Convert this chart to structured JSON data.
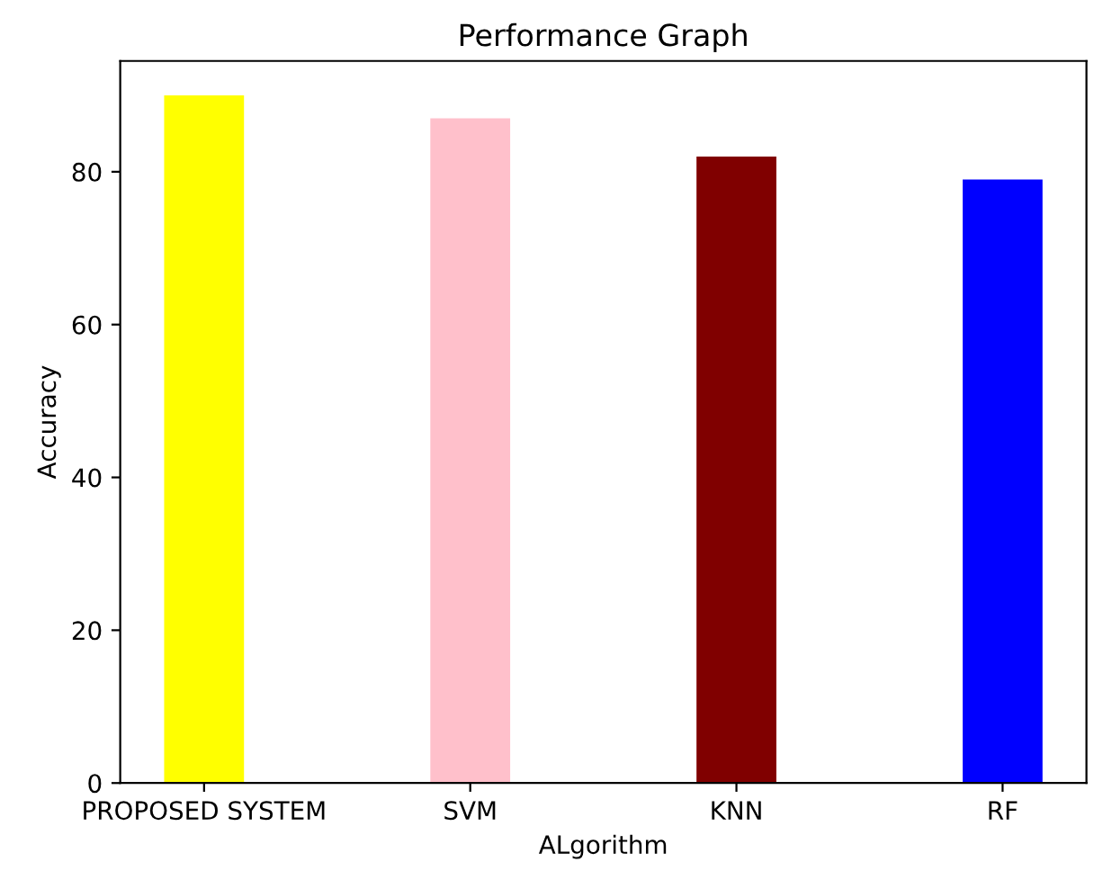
{
  "chart_data": {
    "type": "bar",
    "title": "Performance Graph",
    "xlabel": "ALgorithm",
    "ylabel": "Accuracy",
    "categories": [
      "PROPOSED SYSTEM",
      "SVM",
      "KNN",
      "RF"
    ],
    "values": [
      90,
      87,
      82,
      79
    ],
    "colors": [
      "#ffff00",
      "#ffc0cb",
      "#800000",
      "#0000ff"
    ],
    "ylim": [
      0,
      94.5
    ],
    "yticks": [
      0,
      20,
      40,
      60,
      80
    ],
    "grid": false,
    "legend": false
  }
}
